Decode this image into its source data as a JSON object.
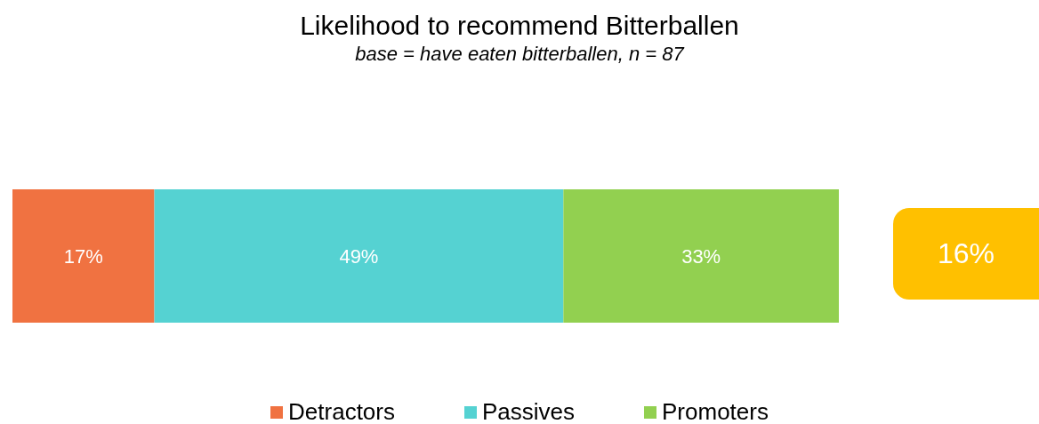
{
  "chart_data": {
    "type": "bar",
    "orientation": "horizontal",
    "stacked": true,
    "title": "Likelihood to recommend Bitterballen",
    "subtitle": "base = have eaten bitterballen, n = 87",
    "categories": [
      null
    ],
    "series": [
      {
        "name": "Detractors",
        "color": "#f07241",
        "values": [
          17
        ],
        "value_labels": [
          "17%"
        ]
      },
      {
        "name": "Passives",
        "color": "#55d2d2",
        "values": [
          49
        ],
        "value_labels": [
          "49%"
        ]
      },
      {
        "name": "Promoters",
        "color": "#92d050",
        "values": [
          33
        ],
        "value_labels": [
          "33%"
        ]
      }
    ],
    "annotations": [
      "16%"
    ],
    "legend": "bottom",
    "grid": false
  }
}
